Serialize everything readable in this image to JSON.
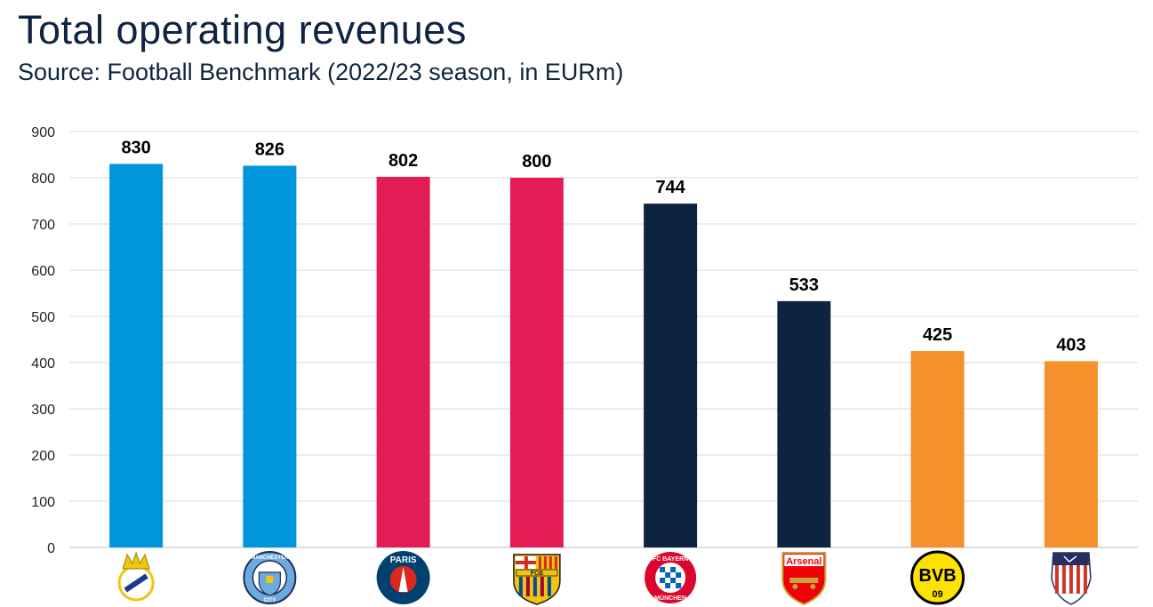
{
  "header": {
    "title": "Total operating revenues",
    "subtitle": "Source: Football Benchmark (2022/23 season, in EURm)"
  },
  "chart_data": {
    "type": "bar",
    "title": "Total operating revenues",
    "subtitle": "Source: Football Benchmark (2022/23 season, in EURm)",
    "xlabel": "",
    "ylabel": "",
    "ylim": [
      0,
      900
    ],
    "yticks": [
      "0",
      "100",
      "200",
      "300",
      "400",
      "500",
      "600",
      "700",
      "800",
      "900"
    ],
    "grid": true,
    "categories": [
      "real-madrid",
      "manchester-city",
      "paris-saint-germain",
      "fc-barcelona",
      "fc-bayern-munchen",
      "arsenal",
      "borussia-dortmund",
      "atletico-madrid"
    ],
    "values": [
      830,
      826,
      802,
      800,
      744,
      533,
      425,
      403
    ],
    "bar_colors": [
      "#0096dc",
      "#0096dc",
      "#e41c56",
      "#e41c56",
      "#0d2440",
      "#0d2440",
      "#f5902d",
      "#f5902d"
    ],
    "data_labels": [
      "830",
      "826",
      "802",
      "800",
      "744",
      "533",
      "425",
      "403"
    ]
  },
  "logos": [
    {
      "name": "real-madrid-crest-icon",
      "primary": "#f1c40f",
      "secondary": "#1f3a8a"
    },
    {
      "name": "manchester-city-crest-icon",
      "primary": "#6cabdd",
      "secondary": "#1c2c5b",
      "lettering": "MANCHESTER CITY"
    },
    {
      "name": "psg-crest-icon",
      "primary": "#004170",
      "secondary": "#da291c",
      "lettering": "PARIS"
    },
    {
      "name": "fc-barcelona-crest-icon",
      "primary": "#a50044",
      "secondary": "#004d98",
      "lettering": "FCB"
    },
    {
      "name": "fc-bayern-crest-icon",
      "primary": "#dc052d",
      "secondary": "#0066b2",
      "lettering": "FC BAYERN MÜNCHEN"
    },
    {
      "name": "arsenal-crest-icon",
      "primary": "#ef0107",
      "secondary": "#c9a63a",
      "lettering": "Arsenal"
    },
    {
      "name": "bvb-crest-icon",
      "primary": "#fde100",
      "secondary": "#000000",
      "lettering": "BVB 09"
    },
    {
      "name": "atletico-madrid-crest-icon",
      "primary": "#cb3524",
      "secondary": "#272e61"
    }
  ]
}
